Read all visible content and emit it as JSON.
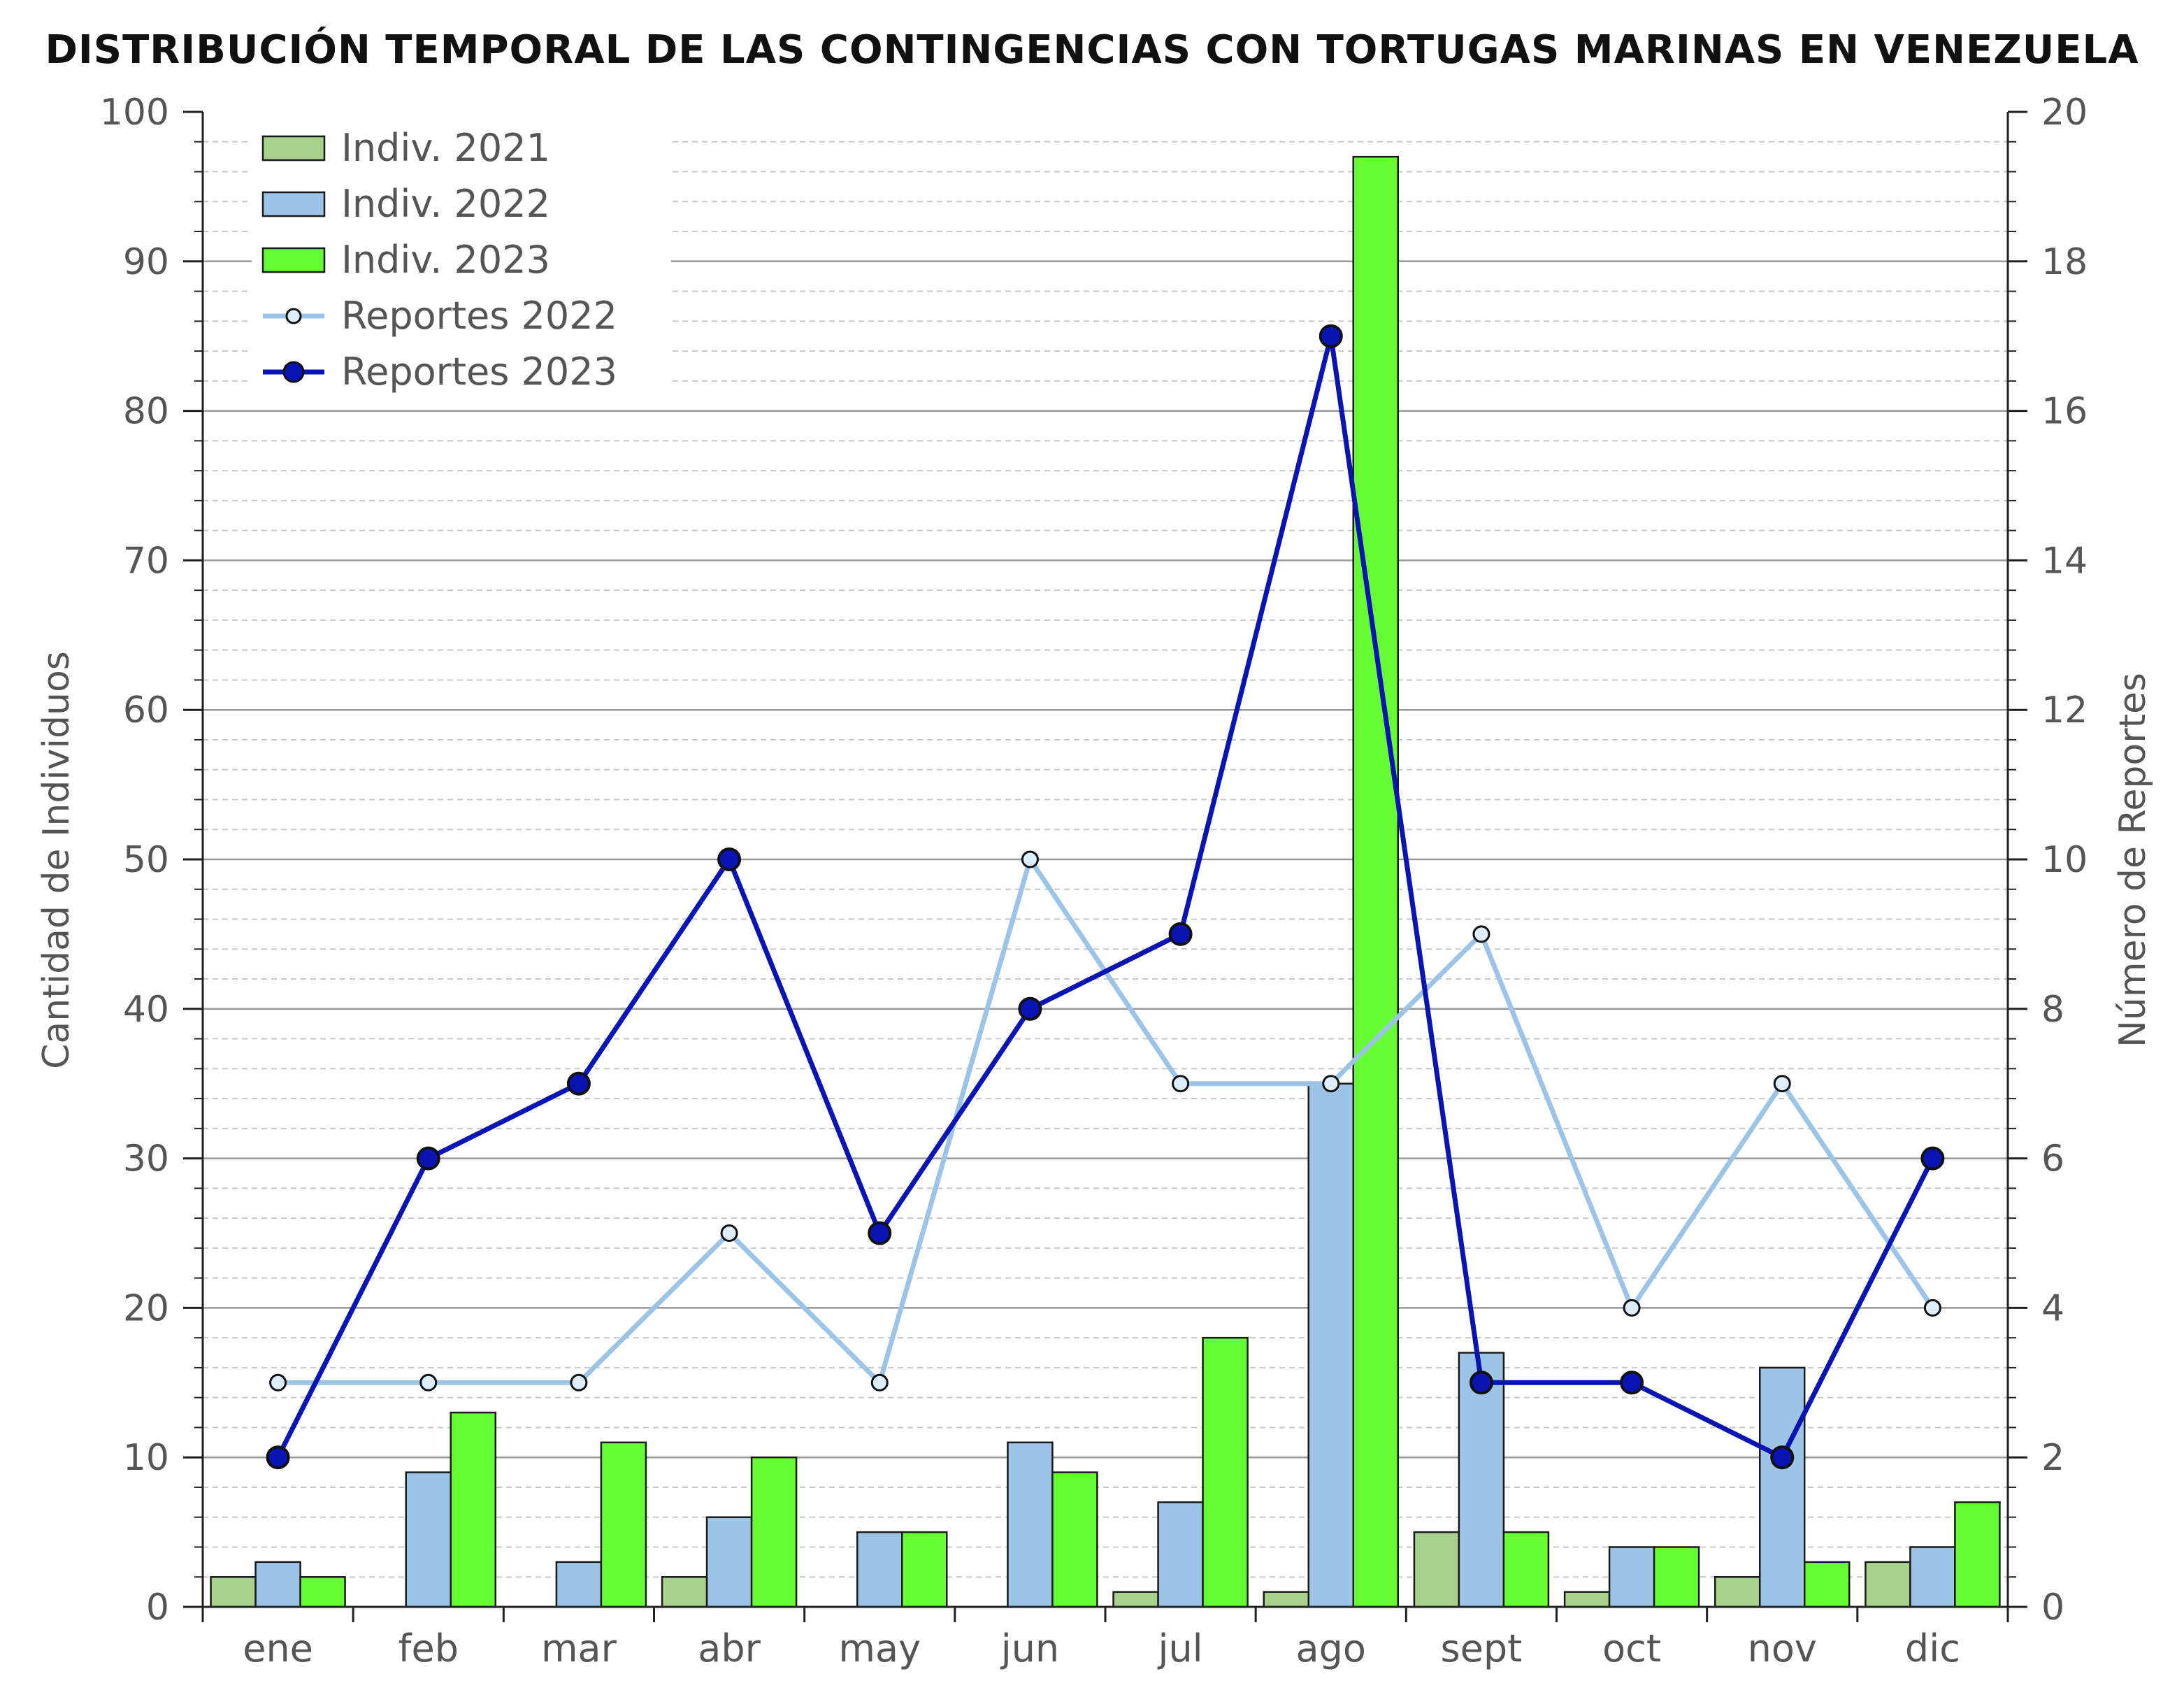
{
  "chart_data": {
    "type": "bar",
    "title": "DISTRIBUCIÓN TEMPORAL DE LAS CONTINGENCIAS CON TORTUGAS MARINAS EN VENEZUELA",
    "ylabel": "Cantidad de Individuos",
    "y2label": "Número de Reportes",
    "xlabel": "",
    "categories": [
      "ene",
      "feb",
      "mar",
      "abr",
      "may",
      "jun",
      "jul",
      "ago",
      "sept",
      "oct",
      "nov",
      "dic"
    ],
    "ylim": [
      0,
      100
    ],
    "y2lim": [
      0,
      20
    ],
    "yticks": [
      0,
      10,
      20,
      30,
      40,
      50,
      60,
      70,
      80,
      90,
      100
    ],
    "y2ticks": [
      0,
      2,
      4,
      6,
      8,
      10,
      12,
      14,
      16,
      18,
      20
    ],
    "grid": true,
    "legend_position": "top-left",
    "series": [
      {
        "name": "Indiv. 2021",
        "kind": "bar",
        "axis": "left",
        "color": "#a9d18e",
        "values": [
          2,
          0,
          0,
          2,
          0,
          0,
          1,
          1,
          5,
          1,
          2,
          3
        ]
      },
      {
        "name": "Indiv. 2022",
        "kind": "bar",
        "axis": "left",
        "color": "#9dc3e6",
        "values": [
          3,
          9,
          3,
          6,
          5,
          11,
          7,
          35,
          17,
          4,
          16,
          4
        ]
      },
      {
        "name": "Indiv. 2023",
        "kind": "bar",
        "axis": "left",
        "color": "#66ff33",
        "values": [
          2,
          13,
          11,
          10,
          5,
          9,
          18,
          97,
          5,
          4,
          3,
          7
        ]
      },
      {
        "name": "Reportes 2022",
        "kind": "line",
        "axis": "right",
        "color": "#9dc3e6",
        "marker_fill": "#ddeefa",
        "values": [
          3,
          3,
          3,
          5,
          3,
          10,
          7,
          7,
          9,
          4,
          7,
          4
        ]
      },
      {
        "name": "Reportes 2023",
        "kind": "line",
        "axis": "right",
        "color": "#0a14b4",
        "marker_fill": "#0a14b4",
        "values": [
          2,
          6,
          7,
          10,
          5,
          8,
          9,
          17,
          3,
          3,
          2,
          6
        ]
      }
    ]
  }
}
